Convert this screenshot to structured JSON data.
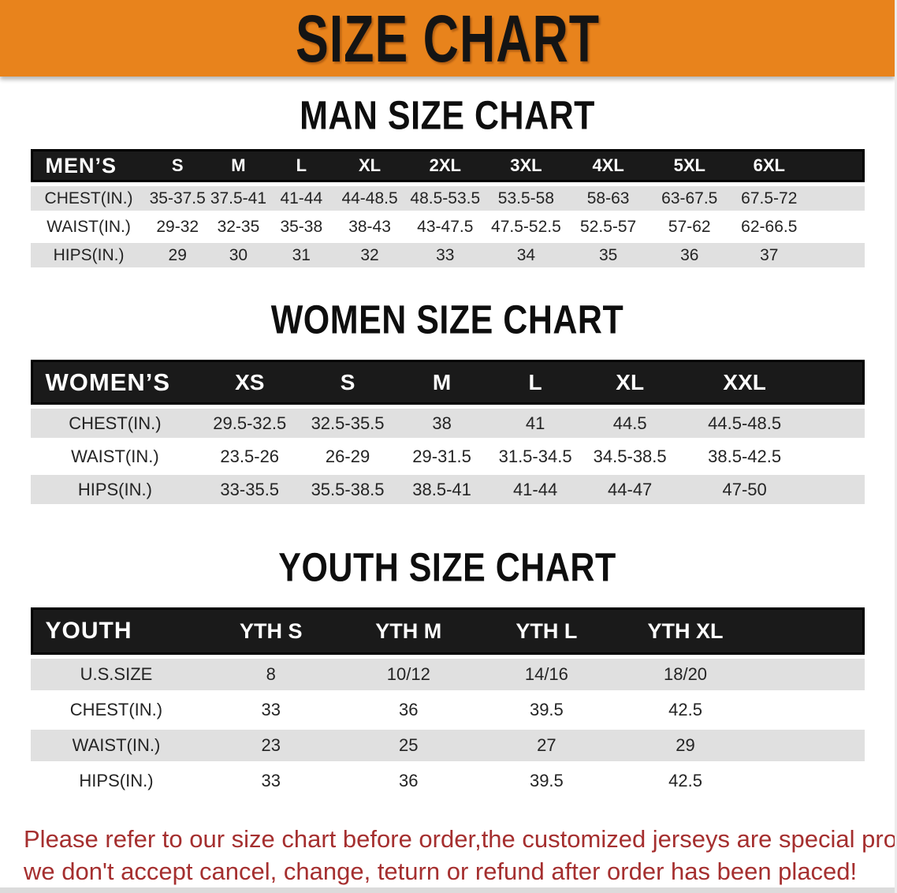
{
  "banner": {
    "title": "SIZE CHART",
    "bg_color": "#E8831C",
    "text_color": "#141414"
  },
  "colors": {
    "table_header_bg": "#1A1A1A",
    "row_shade": "#E0E0E0",
    "disclaimer_red": "#A52F2F"
  },
  "sections": [
    {
      "id": "men",
      "heading": "MAN SIZE CHART",
      "header_label": "MEN’S",
      "columns": [
        "S",
        "M",
        "L",
        "XL",
        "2XL",
        "3XL",
        "4XL",
        "5XL",
        "6XL"
      ],
      "rows": [
        {
          "label": "CHEST(IN.)",
          "values": [
            "35-37.5",
            "37.5-41",
            "41-44",
            "44-48.5",
            "48.5-53.5",
            "53.5-58",
            "58-63",
            "63-67.5",
            "67.5-72"
          ]
        },
        {
          "label": "WAIST(IN.)",
          "values": [
            "29-32",
            "32-35",
            "35-38",
            "38-43",
            "43-47.5",
            "47.5-52.5",
            "52.5-57",
            "57-62",
            "62-66.5"
          ]
        },
        {
          "label": "HIPS(IN.)",
          "values": [
            "29",
            "30",
            "31",
            "32",
            "33",
            "34",
            "35",
            "36",
            "37"
          ]
        }
      ]
    },
    {
      "id": "women",
      "heading": "WOMEN SIZE CHART",
      "header_label": "WOMEN’S",
      "columns": [
        "XS",
        "S",
        "M",
        "L",
        "XL",
        "XXL"
      ],
      "rows": [
        {
          "label": "CHEST(IN.)",
          "values": [
            "29.5-32.5",
            "32.5-35.5",
            "38",
            "41",
            "44.5",
            "44.5-48.5"
          ]
        },
        {
          "label": "WAIST(IN.)",
          "values": [
            "23.5-26",
            "26-29",
            "29-31.5",
            "31.5-34.5",
            "34.5-38.5",
            "38.5-42.5"
          ]
        },
        {
          "label": "HIPS(IN.)",
          "values": [
            "33-35.5",
            "35.5-38.5",
            "38.5-41",
            "41-44",
            "44-47",
            "47-50"
          ]
        }
      ]
    },
    {
      "id": "youth",
      "heading": "YOUTH SIZE CHART",
      "header_label": "YOUTH",
      "columns": [
        "YTH S",
        "YTH M",
        "YTH L",
        "YTH XL"
      ],
      "rows": [
        {
          "label": "U.S.SIZE",
          "values": [
            "8",
            "10/12",
            "14/16",
            "18/20"
          ]
        },
        {
          "label": "CHEST(IN.)",
          "values": [
            "33",
            "36",
            "39.5",
            "42.5"
          ]
        },
        {
          "label": "WAIST(IN.)",
          "values": [
            "23",
            "25",
            "27",
            "29"
          ]
        },
        {
          "label": "HIPS(IN.)",
          "values": [
            "33",
            "36",
            "39.5",
            "42.5"
          ]
        }
      ]
    }
  ],
  "disclaimer": {
    "line1": "Please refer to our size chart before order,the customized jerseys are special products,",
    "line2": "we don't accept cancel, change, teturn or refund after order has been placed!"
  }
}
